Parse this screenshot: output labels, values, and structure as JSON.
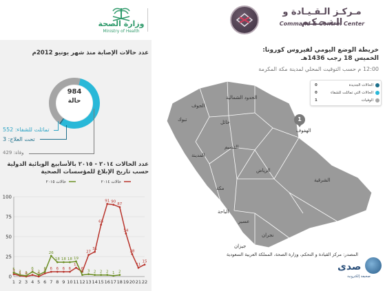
{
  "header": {
    "ccc_title_ar": "مـركـز الـقـيـادة و الـتـحـكـم",
    "ccc_title_en": "Command & Control Center",
    "moh_title_ar": "وزارة الصحة",
    "moh_title_en": "Ministry of Health"
  },
  "cases": {
    "title": "عدد حالات الإصابة منذ شهر يونيو 2012م",
    "total": "984",
    "total_unit": "حالة",
    "recovered_label": "تماثلت للشفاء: 552",
    "treatment_label": "تحت العلاج: 3",
    "deaths_label": "وفاة: 429",
    "recovered": 552,
    "treatment": 3,
    "deaths": 429,
    "colors": {
      "recovered": "#29b8d8",
      "treatment": "#1b6e8a",
      "deaths": "#a5a5a5"
    }
  },
  "chart_title_line1": "عدد الحالات ٢٠١٤ - ٢٠١٥ بالأسابيع الوبائية الدولية",
  "chart_title_line2": "حسب تاريخ الإبلاغ للمؤسسات الصحية",
  "chart_data": {
    "type": "line",
    "x": [
      1,
      2,
      3,
      4,
      5,
      6,
      7,
      8,
      9,
      10,
      11,
      12,
      13,
      14,
      15,
      16,
      17,
      18,
      19,
      20,
      21,
      22
    ],
    "ylim": [
      0,
      100
    ],
    "yticks": [
      0,
      25,
      50,
      75,
      100
    ],
    "series": [
      {
        "name": "حالات ٢٠١٤",
        "color": "#b8332b",
        "values": [
          3,
          1,
          0,
          2,
          0,
          4,
          6,
          6,
          6,
          6,
          11,
          6,
          27,
          31,
          65,
          91,
          90,
          87,
          54,
          28,
          11,
          15
        ]
      },
      {
        "name": "حالات ٢٠١٥",
        "color": "#6b8e23",
        "values": [
          5,
          2,
          1,
          6,
          2,
          6,
          26,
          18,
          18,
          18,
          19,
          2,
          3,
          2,
          2,
          2,
          1,
          2,
          null,
          null,
          null,
          null
        ]
      }
    ]
  },
  "map": {
    "title_line1": "خريطة الوضع اليومي لفيروس كورونا:",
    "title_line2": "الخميس 18 رجب 1436هـ",
    "time_label": "12:00 م حسب التوقيت المحلي لمدينة مكة المكرمة",
    "legend": [
      {
        "label": "الحالات الجديدة",
        "value": "0",
        "color": "#1b6e8a"
      },
      {
        "label": "الحالات التي تماثلت للشفاء",
        "value": "0",
        "color": "#29b8d8"
      },
      {
        "label": "الوفيات",
        "value": "1",
        "color": "#a5a5a5"
      }
    ],
    "marker_count": "1",
    "regions": {
      "northern_borders": "الحدود الشمالية",
      "jouf": "الجوف",
      "tabuk": "تبوك",
      "hail": "حائل",
      "qassim": "القصيم",
      "madinah": "المدينة",
      "riyadh": "الرياض",
      "eastern": "الشرقية",
      "hofuf": "الهفوف",
      "makkah": "مكة",
      "baha": "الباحة",
      "asir": "عسير",
      "najran": "نجران",
      "jazan": "جيزان"
    }
  },
  "source_text": "المصدر: مركز القيادة و التحكم، وزارة الصحة، المملكة العربية السعودية",
  "sada": {
    "name": "صدى",
    "sub": "صحيفة إلكترونية"
  }
}
